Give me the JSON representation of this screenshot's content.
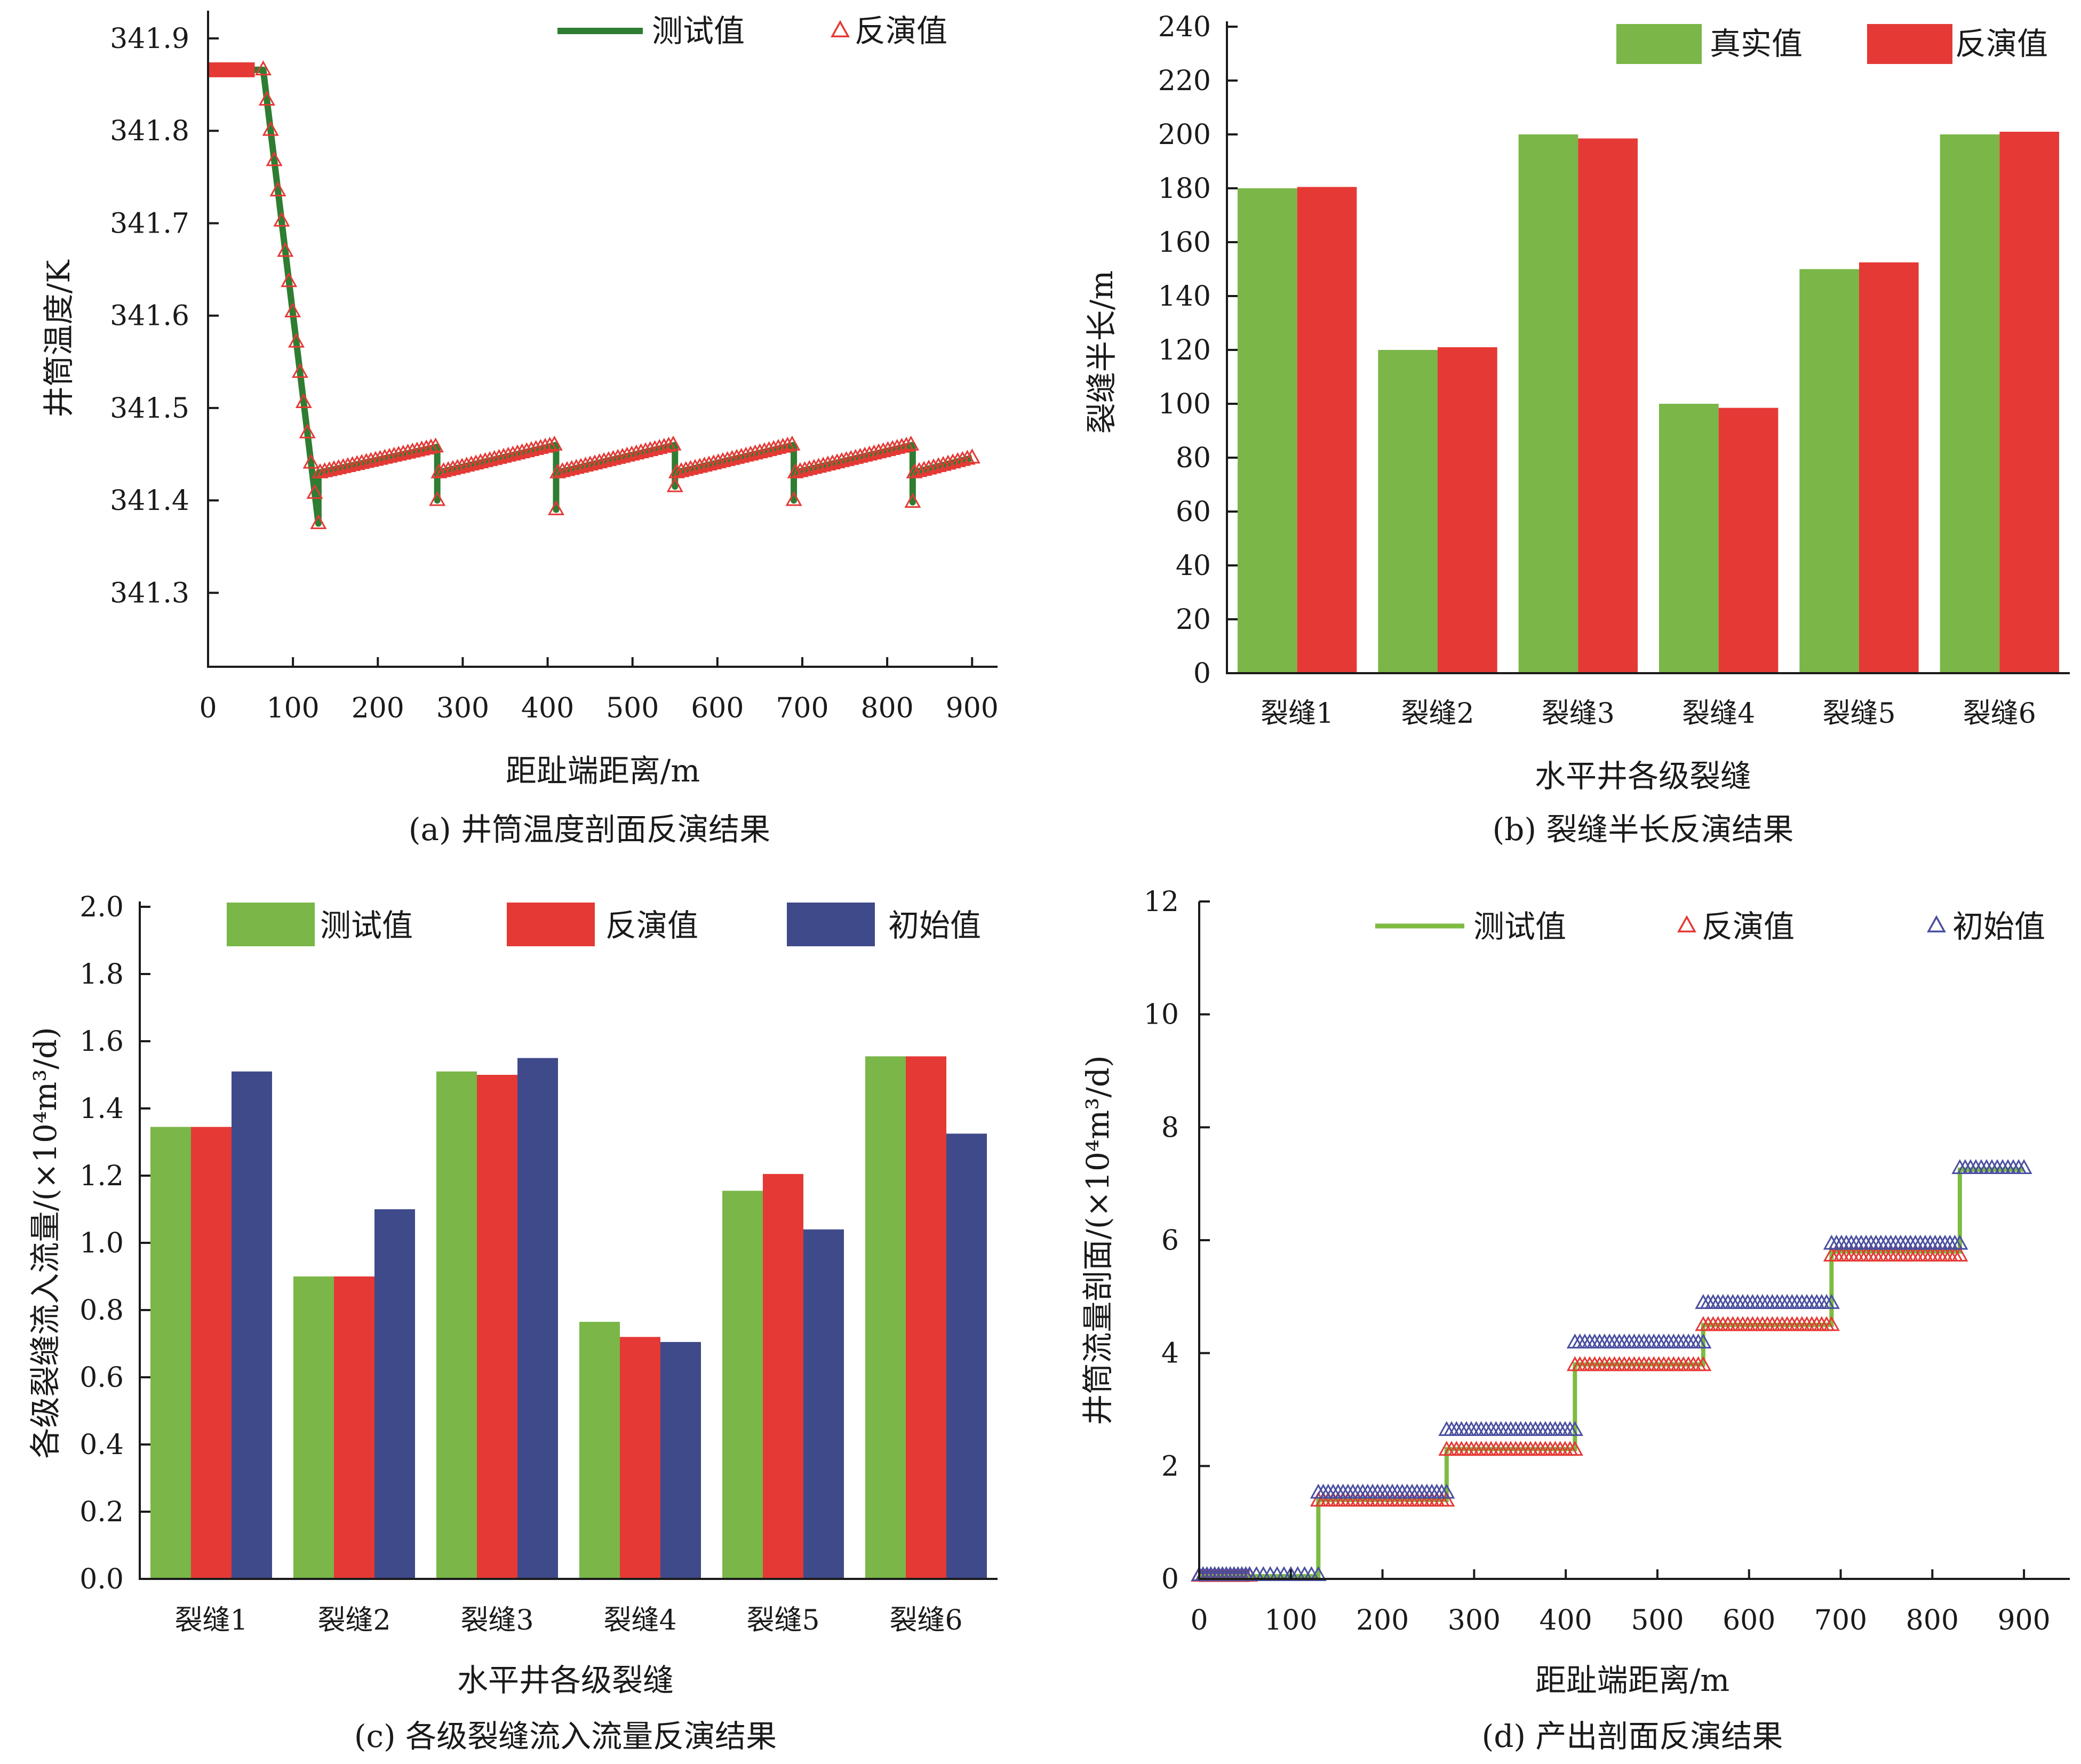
{
  "colors": {
    "test_a": "#2e7d32",
    "test_d": "#7dbb42",
    "green_bar": "#7ab648",
    "red": "#e53935",
    "blue": "#3f4a8a",
    "blue_marker": "#4a4fa0"
  },
  "chart_data": [
    {
      "id": "a",
      "type": "line",
      "caption": "(a) 井筒温度剖面反演结果",
      "xlabel": "距趾端距离/m",
      "ylabel": "井筒温度/K",
      "xlim": [
        0,
        950
      ],
      "ylim": [
        341.22,
        341.93
      ],
      "xticks": [
        0,
        100,
        200,
        300,
        400,
        500,
        600,
        700,
        800,
        900
      ],
      "yticks": [
        341.3,
        341.4,
        341.5,
        341.6,
        341.7,
        341.8,
        341.9
      ],
      "legend": [
        "测试值",
        "反演值"
      ],
      "legend_position": "top",
      "grid": false,
      "series": [
        {
          "name": "测试值",
          "kind": "line",
          "points": [
            [
              0,
              341.866
            ],
            [
              55,
              341.866
            ],
            [
              65,
              341.866
            ],
            [
              130,
              341.375
            ],
            [
              130,
              341.43
            ],
            [
              270,
              341.458
            ],
            [
              270,
              341.4
            ],
            [
              270,
              341.43
            ],
            [
              410,
              341.46
            ],
            [
              410,
              341.39
            ],
            [
              410,
              341.43
            ],
            [
              550,
              341.46
            ],
            [
              550,
              341.415
            ],
            [
              550,
              341.43
            ],
            [
              690,
              341.46
            ],
            [
              690,
              341.4
            ],
            [
              690,
              341.43
            ],
            [
              830,
              341.46
            ],
            [
              830,
              341.398
            ],
            [
              830,
              341.43
            ],
            [
              900,
              341.446
            ]
          ]
        },
        {
          "name": "反演值",
          "kind": "marker",
          "segments": [
            {
              "from": [
                65,
                341.866
              ],
              "to": [
                130,
                341.375
              ],
              "count": 16
            },
            {
              "from": [
                132,
                341.43
              ],
              "to": [
                268,
                341.458
              ],
              "count": 26
            },
            {
              "from": [
                272,
                341.43
              ],
              "to": [
                408,
                341.46
              ],
              "count": 26
            },
            {
              "from": [
                412,
                341.43
              ],
              "to": [
                548,
                341.46
              ],
              "count": 26
            },
            {
              "from": [
                552,
                341.43
              ],
              "to": [
                688,
                341.46
              ],
              "count": 26
            },
            {
              "from": [
                692,
                341.43
              ],
              "to": [
                828,
                341.46
              ],
              "count": 26
            },
            {
              "from": [
                832,
                341.43
              ],
              "to": [
                900,
                341.446
              ],
              "count": 13
            }
          ],
          "points": [
            [
              270,
              341.4
            ],
            [
              410,
              341.39
            ],
            [
              550,
              341.415
            ],
            [
              690,
              341.4
            ],
            [
              830,
              341.398
            ]
          ]
        }
      ]
    },
    {
      "id": "b",
      "type": "bar",
      "caption": "(b) 裂缝半长反演结果",
      "xlabel": "水平井各级裂缝",
      "ylabel": "裂缝半长/m",
      "ylim": [
        0,
        240
      ],
      "yticks": [
        0,
        20,
        40,
        60,
        80,
        100,
        120,
        140,
        160,
        180,
        200,
        220,
        240
      ],
      "categories": [
        "裂缝1",
        "裂缝2",
        "裂缝3",
        "裂缝4",
        "裂缝5",
        "裂缝6"
      ],
      "legend_position": "top-right",
      "grid": false,
      "series": [
        {
          "name": "真实值",
          "values": [
            180,
            120,
            200,
            100,
            150,
            200
          ]
        },
        {
          "name": "反演值",
          "values": [
            180.5,
            121,
            198.5,
            98.5,
            152.5,
            201
          ]
        }
      ]
    },
    {
      "id": "c",
      "type": "bar",
      "caption": "(c) 各级裂缝流入流量反演结果",
      "xlabel": "水平井各级裂缝",
      "ylabel": "各级裂缝流入流量/(×10⁴m³/d)",
      "ylim": [
        0,
        2.0
      ],
      "yticks": [
        "0.0",
        "0.2",
        "0.4",
        "0.6",
        "0.8",
        "1.0",
        "1.2",
        "1.4",
        "1.6",
        "1.8",
        "2.0"
      ],
      "categories": [
        "裂缝1",
        "裂缝2",
        "裂缝3",
        "裂缝4",
        "裂缝5",
        "裂缝6"
      ],
      "legend_position": "top",
      "grid": false,
      "series": [
        {
          "name": "测试值",
          "values": [
            1.345,
            0.9,
            1.51,
            0.765,
            1.155,
            1.555
          ]
        },
        {
          "name": "反演值",
          "values": [
            1.345,
            0.9,
            1.5,
            0.72,
            1.205,
            1.555
          ]
        },
        {
          "name": "初始值",
          "values": [
            1.51,
            1.1,
            1.55,
            0.705,
            1.04,
            1.325
          ]
        }
      ]
    },
    {
      "id": "d",
      "type": "line",
      "caption": "(d) 产出剖面反演结果",
      "xlabel": "距趾端距离/m",
      "ylabel": "井筒流量剖面/(×10⁴m³/d)",
      "xlim": [
        0,
        950
      ],
      "ylim": [
        0,
        12
      ],
      "xticks": [
        0,
        100,
        200,
        300,
        400,
        500,
        600,
        700,
        800,
        900
      ],
      "yticks": [
        0,
        2,
        4,
        6,
        8,
        10,
        12
      ],
      "legend": [
        "测试值",
        "反演值",
        "初始值"
      ],
      "legend_position": "top",
      "grid": false,
      "series": [
        {
          "name": "测试值",
          "kind": "line",
          "points": [
            [
              0,
              0.05
            ],
            [
              130,
              0.05
            ],
            [
              130,
              1.4
            ],
            [
              270,
              1.4
            ],
            [
              270,
              2.3
            ],
            [
              410,
              2.3
            ],
            [
              410,
              3.8
            ],
            [
              550,
              3.8
            ],
            [
              550,
              4.5
            ],
            [
              690,
              4.5
            ],
            [
              690,
              5.8
            ],
            [
              830,
              5.8
            ],
            [
              830,
              7.25
            ],
            [
              900,
              7.25
            ]
          ]
        },
        {
          "name": "反演值",
          "kind": "marker",
          "segments": [
            {
              "from": [
                0,
                0.05
              ],
              "to": [
                55,
                0.05
              ],
              "count": 14
            },
            {
              "from": [
                130,
                1.38
              ],
              "to": [
                270,
                1.38
              ],
              "count": 27
            },
            {
              "from": [
                270,
                2.28
              ],
              "to": [
                410,
                2.28
              ],
              "count": 27
            },
            {
              "from": [
                410,
                3.78
              ],
              "to": [
                550,
                3.78
              ],
              "count": 27
            },
            {
              "from": [
                550,
                4.49
              ],
              "to": [
                690,
                4.49
              ],
              "count": 27
            },
            {
              "from": [
                690,
                5.72
              ],
              "to": [
                830,
                5.72
              ],
              "count": 27
            }
          ]
        },
        {
          "name": "初始值",
          "kind": "marker",
          "segments": [
            {
              "from": [
                0,
                0.06
              ],
              "to": [
                55,
                0.06
              ],
              "count": 14
            },
            {
              "from": [
                55,
                0.06
              ],
              "to": [
                130,
                0.06
              ],
              "count": 11
            },
            {
              "from": [
                130,
                1.52
              ],
              "to": [
                270,
                1.52
              ],
              "count": 27
            },
            {
              "from": [
                270,
                2.63
              ],
              "to": [
                410,
                2.63
              ],
              "count": 27
            },
            {
              "from": [
                410,
                4.18
              ],
              "to": [
                550,
                4.18
              ],
              "count": 27
            },
            {
              "from": [
                550,
                4.88
              ],
              "to": [
                690,
                4.88
              ],
              "count": 27
            },
            {
              "from": [
                690,
                5.93
              ],
              "to": [
                830,
                5.93
              ],
              "count": 27
            },
            {
              "from": [
                830,
                7.27
              ],
              "to": [
                900,
                7.27
              ],
              "count": 13
            }
          ]
        }
      ]
    }
  ]
}
